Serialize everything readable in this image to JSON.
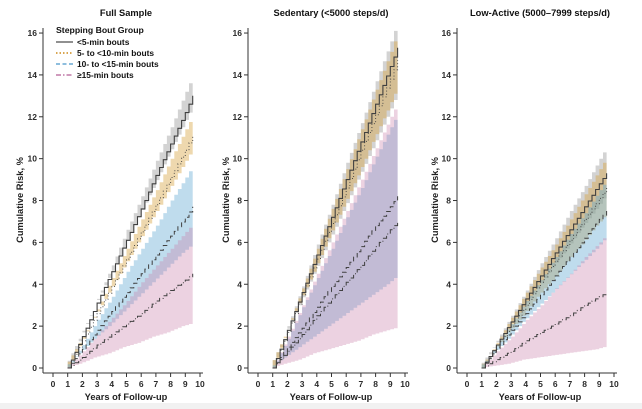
{
  "figure": {
    "x_axis_label": "Years of Follow-up",
    "y_axis_label": "Cumulative Risk, %",
    "x_ticks": [
      0,
      1,
      2,
      3,
      4,
      5,
      6,
      7,
      8,
      9,
      10
    ],
    "y_ticks": [
      0,
      2,
      4,
      6,
      8,
      10,
      12,
      14,
      16
    ],
    "axis_color": "#333333",
    "tick_label_color": "#2b2b2b",
    "line_color": "#404040"
  },
  "legend": {
    "title": "Stepping Bout Group",
    "items": [
      {
        "label": "<5-min bouts",
        "color": "#6b6b6b",
        "dash": "solid"
      },
      {
        "label": "5- to <10-min bouts",
        "color": "#d49a3a",
        "dash": "dotted"
      },
      {
        "label": "10- to <15-min bouts",
        "color": "#7fb5d9",
        "dash": "dashed"
      },
      {
        "label": "≥15-min bouts",
        "color": "#c98cb4",
        "dash": "dashdot"
      }
    ]
  },
  "series_styles": [
    {
      "key": "lt5",
      "label": "<5-min bouts",
      "dash": "solid",
      "band_color": "#8c8c8c",
      "band_opacity": 0.38
    },
    {
      "key": "b5to10",
      "label": "5- to <10-min bouts",
      "dash": "dotted",
      "band_color": "#d7a13f",
      "band_opacity": 0.42
    },
    {
      "key": "b10to15",
      "label": "10- to <15-min bouts",
      "dash": "dashed",
      "band_color": "#5fa8d1",
      "band_opacity": 0.4
    },
    {
      "key": "ge15",
      "label": "≥15-min bouts",
      "dash": "dashdot",
      "band_color": "#c87fa8",
      "band_opacity": 0.35
    }
  ],
  "chart_data": [
    {
      "type": "line",
      "title": "Full Sample",
      "xlabel": "Years of Follow-up",
      "ylabel": "Cumulative Risk, %",
      "xlim": [
        0,
        10
      ],
      "ylim": [
        0,
        16.8
      ],
      "x": [
        1,
        2,
        3,
        4,
        5,
        6,
        7,
        8,
        9,
        9.5
      ],
      "series": [
        {
          "name": "<5-min bouts",
          "line": [
            0,
            1.5,
            3.1,
            4.6,
            6.1,
            7.6,
            9.2,
            10.7,
            12.2,
            13.0
          ],
          "lower": [
            0,
            1.4,
            2.9,
            4.3,
            5.7,
            7.2,
            8.6,
            10.1,
            11.5,
            12.2
          ],
          "upper": [
            0,
            1.7,
            3.3,
            4.9,
            6.6,
            8.2,
            9.9,
            11.5,
            13.2,
            14.0
          ]
        },
        {
          "name": "5- to <10-min bouts",
          "line": [
            0,
            1.3,
            2.6,
            3.9,
            5.2,
            6.5,
            7.8,
            9.1,
            10.4,
            11.1
          ],
          "lower": [
            0,
            1.2,
            2.4,
            3.6,
            4.8,
            6.0,
            7.2,
            8.4,
            9.6,
            10.2
          ],
          "upper": [
            0,
            1.4,
            2.8,
            4.3,
            5.7,
            7.1,
            8.5,
            10.0,
            11.4,
            12.1
          ]
        },
        {
          "name": "10- to <15-min bouts",
          "line": [
            0,
            0.9,
            1.8,
            2.7,
            3.6,
            4.5,
            5.4,
            6.3,
            7.2,
            7.7
          ],
          "lower": [
            0,
            0.7,
            1.4,
            2.0,
            2.7,
            3.4,
            4.1,
            4.8,
            5.5,
            5.8
          ],
          "upper": [
            0,
            1.1,
            2.3,
            3.4,
            4.6,
            5.7,
            6.8,
            8.0,
            9.1,
            9.7
          ]
        },
        {
          "name": "≥15-min bouts",
          "line": [
            0,
            0.5,
            1.1,
            1.6,
            2.1,
            2.6,
            3.2,
            3.7,
            4.2,
            4.5
          ],
          "lower": [
            0,
            0.2,
            0.5,
            0.7,
            1.0,
            1.2,
            1.5,
            1.7,
            2.0,
            2.1
          ],
          "upper": [
            0,
            0.8,
            1.6,
            2.4,
            3.2,
            4.1,
            4.9,
            5.7,
            6.5,
            6.9
          ]
        }
      ]
    },
    {
      "type": "line",
      "title": "Sedentary (<5000 steps/d)",
      "xlabel": "Years of Follow-up",
      "ylabel": "Cumulative Risk, %",
      "xlim": [
        0,
        10
      ],
      "ylim": [
        0,
        16.8
      ],
      "x": [
        1,
        2,
        3,
        4,
        5,
        6,
        7,
        8,
        9,
        9.5
      ],
      "series": [
        {
          "name": "<5-min bouts",
          "line": [
            0,
            1.8,
            3.6,
            5.4,
            7.2,
            9.0,
            10.8,
            12.6,
            14.4,
            15.3
          ],
          "lower": [
            0,
            1.5,
            3.0,
            4.5,
            6.0,
            7.5,
            9.0,
            10.5,
            12.0,
            12.8
          ],
          "upper": [
            0,
            2.0,
            3.9,
            5.9,
            7.8,
            9.8,
            11.7,
            13.7,
            15.6,
            16.6
          ]
        },
        {
          "name": "5- to <10-min bouts",
          "line": [
            0,
            1.7,
            3.5,
            5.2,
            6.9,
            8.6,
            10.4,
            12.1,
            13.8,
            14.7
          ],
          "lower": [
            0,
            1.5,
            3.1,
            4.6,
            6.2,
            7.7,
            9.2,
            10.8,
            12.3,
            13.1
          ],
          "upper": [
            0,
            1.9,
            3.8,
            5.7,
            7.6,
            9.5,
            11.4,
            13.3,
            15.1,
            16.1
          ]
        },
        {
          "name": "10- to <15-min bouts",
          "line": [
            0,
            1.0,
            1.9,
            2.9,
            3.9,
            4.8,
            5.8,
            6.8,
            7.7,
            8.2
          ],
          "lower": [
            0,
            0.5,
            1.0,
            1.5,
            2.0,
            2.5,
            3.0,
            3.5,
            4.0,
            4.3
          ],
          "upper": [
            0,
            1.4,
            2.9,
            4.3,
            5.7,
            7.2,
            8.6,
            10.1,
            11.5,
            12.2
          ]
        },
        {
          "name": "≥15-min bouts",
          "line": [
            0,
            0.8,
            1.6,
            2.5,
            3.3,
            4.1,
            4.9,
            5.8,
            6.6,
            7.0
          ],
          "lower": [
            0,
            0.2,
            0.4,
            0.7,
            0.9,
            1.1,
            1.3,
            1.6,
            1.8,
            1.9
          ],
          "upper": [
            0,
            1.5,
            3.0,
            4.5,
            6.0,
            7.5,
            9.0,
            10.5,
            12.0,
            12.7
          ]
        }
      ]
    },
    {
      "type": "line",
      "title": "Low-Active (5000–7999 steps/d)",
      "xlabel": "Years of Follow-up",
      "ylabel": "Cumulative Risk, %",
      "xlim": [
        0,
        10
      ],
      "ylim": [
        0,
        16.8
      ],
      "x": [
        1,
        2,
        3,
        4,
        5,
        6,
        7,
        8,
        9,
        9.5
      ],
      "series": [
        {
          "name": "<5-min bouts",
          "line": [
            0,
            1.1,
            2.2,
            3.3,
            4.4,
            5.5,
            6.6,
            7.7,
            8.8,
            9.3
          ],
          "lower": [
            0,
            1.0,
            1.9,
            2.9,
            3.8,
            4.8,
            5.7,
            6.7,
            7.6,
            8.1
          ],
          "upper": [
            0,
            1.3,
            2.5,
            3.7,
            5.0,
            6.2,
            7.5,
            8.7,
            10.0,
            10.6
          ]
        },
        {
          "name": "5- to <10-min bouts",
          "line": [
            0,
            1.0,
            2.0,
            3.0,
            4.1,
            5.1,
            6.1,
            7.1,
            8.1,
            8.6
          ],
          "lower": [
            0,
            0.8,
            1.7,
            2.5,
            3.4,
            4.2,
            5.1,
            5.9,
            6.8,
            7.2
          ],
          "upper": [
            0,
            1.2,
            2.4,
            3.6,
            4.8,
            5.9,
            7.1,
            8.3,
            9.5,
            10.1
          ]
        },
        {
          "name": "10- to <15-min bouts",
          "line": [
            0,
            0.9,
            1.8,
            2.6,
            3.5,
            4.4,
            5.3,
            6.2,
            7.1,
            7.5
          ],
          "lower": [
            0,
            0.7,
            1.4,
            2.2,
            2.9,
            3.6,
            4.3,
            5.0,
            5.7,
            6.1
          ],
          "upper": [
            0,
            1.1,
            2.1,
            3.2,
            4.2,
            5.3,
            6.4,
            7.4,
            8.5,
            9.0
          ]
        },
        {
          "name": "≥15-min bouts",
          "line": [
            0,
            0.4,
            0.8,
            1.3,
            1.7,
            2.1,
            2.5,
            3.0,
            3.4,
            3.6
          ],
          "lower": [
            0,
            0.1,
            0.2,
            0.4,
            0.5,
            0.6,
            0.7,
            0.8,
            0.9,
            1.0
          ],
          "upper": [
            0,
            0.8,
            1.5,
            2.3,
            3.0,
            3.8,
            4.5,
            5.3,
            6.0,
            6.4
          ]
        }
      ]
    }
  ]
}
